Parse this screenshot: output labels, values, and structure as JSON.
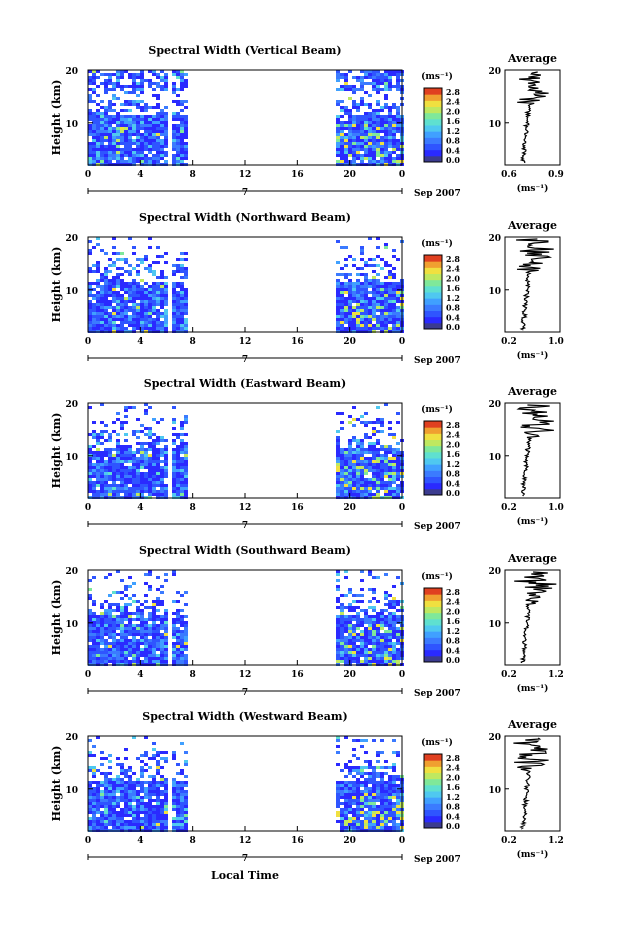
{
  "x_axis": {
    "ticks": [
      "0",
      "4",
      "8",
      "12",
      "16",
      "20",
      "0"
    ],
    "day_label": "7",
    "date_label": "Sep 2007",
    "label": "Local Time"
  },
  "height_axis": {
    "label": "Height (km)",
    "ticks": [
      "20",
      "10"
    ]
  },
  "colorbar": {
    "unit": "(ms⁻¹)",
    "ticks": [
      "2.8",
      "2.4",
      "2.0",
      "1.6",
      "1.2",
      "0.8",
      "0.4",
      "0.0"
    ]
  },
  "chart_data": [
    {
      "type": "heatmap",
      "title": "Spectral Width (Vertical Beam)",
      "profile": {
        "title": "Average",
        "xticks": [
          "0.6",
          "0.9"
        ],
        "xlabel": "(ms⁻¹)",
        "xlim": [
          0.5,
          1.0
        ],
        "yticks": [
          "20",
          "10"
        ],
        "ylim": [
          2,
          20
        ]
      }
    },
    {
      "type": "heatmap",
      "title": "Spectral Width (Northward Beam)",
      "profile": {
        "title": "Average",
        "xticks": [
          "0.2",
          "1.0"
        ],
        "xlabel": "(ms⁻¹)",
        "xlim": [
          0.2,
          1.0
        ],
        "yticks": [
          "20",
          "10"
        ],
        "ylim": [
          2,
          20
        ]
      }
    },
    {
      "type": "heatmap",
      "title": "Spectral Width (Eastward Beam)",
      "profile": {
        "title": "Average",
        "xticks": [
          "0.2",
          "1.0"
        ],
        "xlabel": "(ms⁻¹)",
        "xlim": [
          0.2,
          1.0
        ],
        "yticks": [
          "20",
          "10"
        ],
        "ylim": [
          2,
          20
        ]
      }
    },
    {
      "type": "heatmap",
      "title": "Spectral Width (Southward Beam)",
      "profile": {
        "title": "Average",
        "xticks": [
          "0.2",
          "1.2"
        ],
        "xlabel": "(ms⁻¹)",
        "xlim": [
          0.2,
          1.2
        ],
        "yticks": [
          "20",
          "10"
        ],
        "ylim": [
          2,
          20
        ]
      }
    },
    {
      "type": "heatmap",
      "title": "Spectral Width (Westward Beam)",
      "profile": {
        "title": "Average",
        "xticks": [
          "0.2",
          "1.2"
        ],
        "xlabel": "(ms⁻¹)",
        "xlim": [
          0.2,
          1.2
        ],
        "yticks": [
          "20",
          "10"
        ],
        "ylim": [
          2,
          20
        ]
      }
    }
  ]
}
